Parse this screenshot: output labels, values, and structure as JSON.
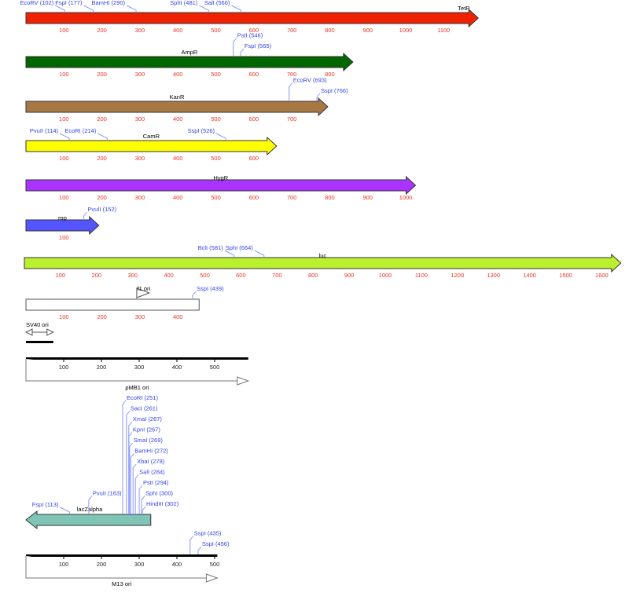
{
  "colors": {
    "site_label": "#3344ee",
    "site_line": "#8899ff",
    "tick_label": "#ee3322",
    "feature_label": "#000000"
  },
  "features": [
    {
      "name": "TetR",
      "color": "#ee2200",
      "length": 1191,
      "direction": "forward",
      "style": "arrow",
      "ticks": [
        "100",
        "200",
        "300",
        "400",
        "500",
        "600",
        "700",
        "800",
        "900",
        "1000",
        "1100"
      ],
      "sites": [
        {
          "label": "EcoRV (102)",
          "pos": 102
        },
        {
          "label": "FspI (177)",
          "pos": 177
        },
        {
          "label": "BamHI (290)",
          "pos": 290
        },
        {
          "label": "SphI (481)",
          "pos": 481
        },
        {
          "label": "SalI (566)",
          "pos": 566
        }
      ]
    },
    {
      "name": "AmpR",
      "color": "#006600",
      "length": 861,
      "direction": "forward",
      "style": "arrow",
      "ticks": [
        "100",
        "200",
        "300",
        "400",
        "500",
        "600",
        "700",
        "800"
      ],
      "sites": [
        {
          "label": "PstI (546)",
          "pos": 546
        },
        {
          "label": "FspI (565)",
          "pos": 565
        }
      ]
    },
    {
      "name": "KanR",
      "color": "#a87844",
      "length": 795,
      "direction": "forward",
      "style": "arrow",
      "ticks": [
        "100",
        "200",
        "300",
        "400",
        "500",
        "600",
        "700"
      ],
      "sites": [
        {
          "label": "EcoRV (693)",
          "pos": 693
        },
        {
          "label": "SspI (766)",
          "pos": 766
        }
      ]
    },
    {
      "name": "CamR",
      "color": "#ffff00",
      "length": 660,
      "direction": "forward",
      "style": "arrow",
      "ticks": [
        "100",
        "200",
        "300",
        "400",
        "500",
        "600"
      ],
      "sites": [
        {
          "label": "PvuII (114)",
          "pos": 114
        },
        {
          "label": "EcoRI (214)",
          "pos": 214
        },
        {
          "label": "SspI (526)",
          "pos": 526
        }
      ]
    },
    {
      "name": "HygR",
      "color": "#aa33ff",
      "length": 1026,
      "direction": "forward",
      "style": "arrow",
      "ticks": [
        "100",
        "200",
        "300",
        "400",
        "500",
        "600",
        "700",
        "800",
        "900",
        "1000"
      ],
      "sites": []
    },
    {
      "name": "rop",
      "color": "#5555ff",
      "length": 192,
      "direction": "forward",
      "style": "arrow",
      "ticks": [
        "100"
      ],
      "sites": [
        {
          "label": "PvuII (152)",
          "pos": 152
        }
      ]
    },
    {
      "name": "luc",
      "color": "#bbf030",
      "length": 1653,
      "direction": "forward",
      "style": "arrow",
      "ticks": [
        "100",
        "200",
        "300",
        "400",
        "500",
        "600",
        "700",
        "800",
        "900",
        "1000",
        "1100",
        "1200",
        "1300",
        "1400",
        "1500",
        "1600"
      ],
      "sites": [
        {
          "label": "BclI (581)",
          "pos": 581
        },
        {
          "label": "SphI (664)",
          "pos": 664
        }
      ]
    },
    {
      "name": "f1 ori",
      "color": "#ffffff",
      "length": 456,
      "direction": "forward",
      "style": "box",
      "ticks": [
        "100",
        "200",
        "300",
        "400"
      ],
      "sites": [
        {
          "label": "SspI (439)",
          "pos": 439
        }
      ]
    },
    {
      "name": "SV40 ori",
      "color": "#ffffff",
      "length": 72,
      "direction": "both",
      "style": "small",
      "ticks": [],
      "sites": []
    },
    {
      "name": "pMB1 ori",
      "color": "#ffffff",
      "length": 589,
      "direction": "forward",
      "style": "line",
      "ticks": [
        "100",
        "200",
        "300",
        "400",
        "500"
      ],
      "sites": []
    },
    {
      "name": "lacZalpha",
      "color": "#7fc4b4",
      "length": 324,
      "direction": "reverse",
      "style": "arrow",
      "ticks": [],
      "sites": [
        {
          "label": "FspI (113)",
          "pos": 113
        },
        {
          "label": "PvuII (163)",
          "pos": 163
        },
        {
          "label": "EcoRI (251)",
          "pos": 251
        },
        {
          "label": "SacI (261)",
          "pos": 261
        },
        {
          "label": "XmaI (267)",
          "pos": 267
        },
        {
          "label": "KpnI (267)",
          "pos": 267
        },
        {
          "label": "SmaI (269)",
          "pos": 269
        },
        {
          "label": "BamHI (272)",
          "pos": 272
        },
        {
          "label": "XbaI (278)",
          "pos": 278
        },
        {
          "label": "SalI (284)",
          "pos": 284
        },
        {
          "label": "PstI (294)",
          "pos": 294
        },
        {
          "label": "SphI (300)",
          "pos": 300
        },
        {
          "label": "HindIII (302)",
          "pos": 302
        }
      ]
    },
    {
      "name": "M13 ori",
      "color": "#ffffff",
      "length": 507,
      "direction": "forward",
      "style": "line",
      "ticks": [
        "100",
        "200",
        "300",
        "400",
        "500"
      ],
      "sites": [
        {
          "label": "SspI (435)",
          "pos": 435
        },
        {
          "label": "SspI (456)",
          "pos": 456
        }
      ]
    }
  ]
}
